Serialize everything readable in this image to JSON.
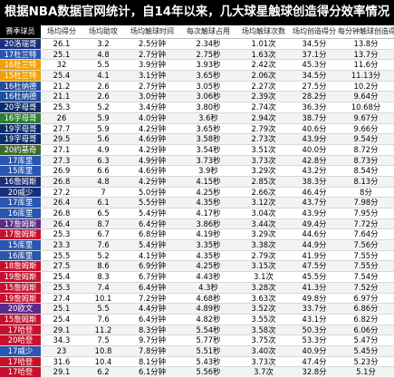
{
  "title": "根据NBA数据官网统计，自14年以来，几大球星触球创造得分效率情况",
  "columns": [
    "赛季球员",
    "场均得分",
    "场均助攻",
    "场均触球时间",
    "每次触球占用",
    "场均触球次数",
    "场均创造得分",
    "每分钟触球创造得分"
  ],
  "team_colors": {
    "hornets": "#1a2f7a",
    "pelicans": "#0d2d6b",
    "blazers": "#1f4e9c",
    "nuggets": "#3d6b2a",
    "warriors": "#2a56b0",
    "thunder": "#f2a100",
    "rockets": "#c8102e",
    "lakers": "#5b2a86",
    "bucks": "#2e7d32"
  },
  "rows": [
    {
      "label": "20洛瑞哥",
      "team": "hornets",
      "values": [
        "26.1",
        "3.2",
        "2.5分钟",
        "2.34秒",
        "1.01次",
        "34.5分",
        "13.8分"
      ]
    },
    {
      "label": "17杜兰特",
      "team": "warriors",
      "values": [
        "25.1",
        "4.8",
        "2.7分钟",
        "2.75秒",
        "1.63次",
        "37.1分",
        "13.7分"
      ]
    },
    {
      "label": "16杜兰特",
      "team": "thunder",
      "values": [
        "32",
        "5.5",
        "3.9分钟",
        "3.93秒",
        "2.42次",
        "45.3分",
        "11.6分"
      ]
    },
    {
      "label": "15杜兰特",
      "team": "thunder",
      "values": [
        "25.4",
        "4.1",
        "3.1分钟",
        "3.65秒",
        "2.06次",
        "34.5分",
        "11.13分"
      ]
    },
    {
      "label": "16杜纳德",
      "team": "blazers",
      "values": [
        "21.2",
        "2.6",
        "2.7分钟",
        "3.05秒",
        "2.27次",
        "27.5分",
        "10.2分"
      ]
    },
    {
      "label": "16杜纳德",
      "team": "blazers",
      "values": [
        "21.1",
        "2.6",
        "3.0分钟",
        "3.06秒",
        "2.39次",
        "28.2分",
        "9.64分"
      ]
    },
    {
      "label": "20字母哥",
      "team": "pelicans",
      "values": [
        "25.3",
        "5.2",
        "3.4分钟",
        "3.80秒",
        "2.74次",
        "36.3分",
        "10.68分"
      ]
    },
    {
      "label": "16字母哥",
      "team": "bucks",
      "values": [
        "26",
        "5.9",
        "4.0分钟",
        "3.6秒",
        "2.94次",
        "38.7分",
        "9.67分"
      ]
    },
    {
      "label": "19字母哥",
      "team": "pelicans",
      "values": [
        "27.7",
        "5.9",
        "4.2分钟",
        "3.65秒",
        "2.79次",
        "40.6分",
        "9.66分"
      ]
    },
    {
      "label": "19字母哥",
      "team": "pelicans",
      "values": [
        "29.5",
        "5.6",
        "4.6分钟",
        "3.58秒",
        "2.73次",
        "43.9分",
        "9.54分"
      ]
    },
    {
      "label": "20约基奇",
      "team": "nuggets",
      "values": [
        "27.1",
        "4.9",
        "4.2分钟",
        "3.54秒",
        "3.51次",
        "40.0分",
        "8.72分"
      ]
    },
    {
      "label": "17库里",
      "team": "warriors",
      "values": [
        "27.3",
        "6.3",
        "4.9分钟",
        "3.73秒",
        "3.73次",
        "42.8分",
        "8.73分"
      ]
    },
    {
      "label": "15库里",
      "team": "warriors",
      "values": [
        "26.9",
        "6.6",
        "4.6分钟",
        "3.9秒",
        "3.29次",
        "43.2分",
        "8.54分"
      ]
    },
    {
      "label": "16詹姆斯",
      "team": "hornets",
      "values": [
        "26.8",
        "4.8",
        "4.2分钟",
        "4.15秒",
        "2.85次",
        "38.3分",
        "8.13分"
      ]
    },
    {
      "label": "20威少",
      "team": "hornets",
      "values": [
        "27.2",
        "7",
        "5.0分钟",
        "4.25秒",
        "2.66次",
        "46.4分",
        "8分"
      ]
    },
    {
      "label": "17库里",
      "team": "warriors",
      "values": [
        "26.4",
        "6.1",
        "5.5分钟",
        "4.35秒",
        "3.12次",
        "43.7分",
        "7.98分"
      ]
    },
    {
      "label": "16库里",
      "team": "warriors",
      "values": [
        "26.8",
        "6.5",
        "5.4分钟",
        "4.17秒",
        "3.04次",
        "43.9分",
        "7.95分"
      ]
    },
    {
      "label": "17詹姆斯",
      "team": "lakers",
      "values": [
        "26.4",
        "8.7",
        "6.4分钟",
        "3.86秒",
        "3.44次",
        "49.4分",
        "7.72分"
      ]
    },
    {
      "label": "17詹姆斯",
      "team": "rockets",
      "values": [
        "25.3",
        "6.7",
        "6.8分钟",
        "4.19秒",
        "3.29次",
        "44.6分",
        "7.64分"
      ]
    },
    {
      "label": "15库里",
      "team": "warriors",
      "values": [
        "23.3",
        "7.6",
        "5.4分钟",
        "3.35秒",
        "3.38次",
        "44.9分",
        "7.56分"
      ]
    },
    {
      "label": "16库里",
      "team": "warriors",
      "values": [
        "25.5",
        "5.2",
        "4.1分钟",
        "4.35秒",
        "2.79次",
        "41.9分",
        "7.55分"
      ]
    },
    {
      "label": "18詹姆斯",
      "team": "rockets",
      "values": [
        "27.5",
        "8.6",
        "6.9分钟",
        "4.25秒",
        "3.15次",
        "47.5分",
        "7.55分"
      ]
    },
    {
      "label": "19詹姆斯",
      "team": "rockets",
      "values": [
        "25.4",
        "8.3",
        "6.7分钟",
        "4.43秒",
        "3.1次",
        "45.5分",
        "7.54分"
      ]
    },
    {
      "label": "15詹姆斯",
      "team": "rockets",
      "values": [
        "25.3",
        "7.4",
        "6.4分钟",
        "4.3秒",
        "3.28次",
        "41.3分",
        "7.52分"
      ]
    },
    {
      "label": "19詹姆斯",
      "team": "rockets",
      "values": [
        "27.4",
        "10.1",
        "7.2分钟",
        "4.68秒",
        "3.63次",
        "49.8分",
        "6.97分"
      ]
    },
    {
      "label": "20欧文",
      "team": "lakers",
      "values": [
        "25.1",
        "5.5",
        "4.4分钟",
        "4.89秒",
        "3.52次",
        "33.7分",
        "6.86分"
      ]
    },
    {
      "label": "15詹姆斯",
      "team": "rockets",
      "values": [
        "25.4",
        "7.6",
        "6.4分钟",
        "4.82秒",
        "3.55次",
        "43.1分",
        "6.82分"
      ]
    },
    {
      "label": "17哈登",
      "team": "rockets",
      "values": [
        "29.1",
        "11.2",
        "8.3分钟",
        "5.54秒",
        "3.58次",
        "50.3分",
        "6.06分"
      ]
    },
    {
      "label": "20哈登",
      "team": "rockets",
      "values": [
        "34.3",
        "7.5",
        "9.7分钟",
        "5.77秒",
        "3.75次",
        "53.3分",
        "5.47分"
      ]
    },
    {
      "label": "17威少",
      "team": "warriors",
      "values": [
        "23",
        "10.8",
        "7.8分钟",
        "5.51秒",
        "3.40次",
        "40.9分",
        "5.45分"
      ]
    },
    {
      "label": "17哈登",
      "team": "rockets",
      "values": [
        "31.6",
        "10.4",
        "8.1分钟",
        "5.43秒",
        "3.73次",
        "47.4分",
        "5.23分"
      ]
    },
    {
      "label": "17哈登",
      "team": "rockets",
      "values": [
        "29.1",
        "6.2",
        "6.1分钟",
        "5.56秒",
        "3.7次",
        "32.8分",
        "5.1分"
      ]
    }
  ]
}
